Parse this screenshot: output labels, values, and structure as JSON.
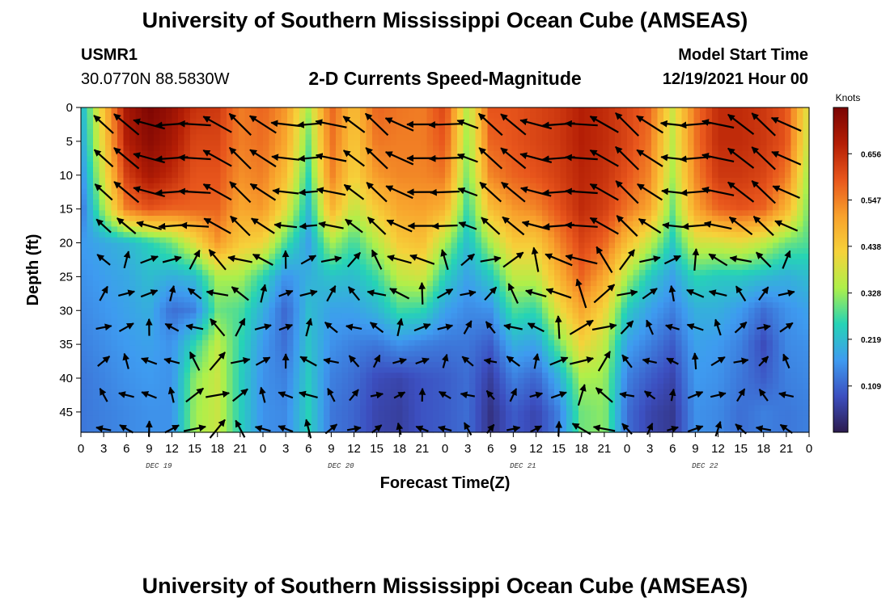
{
  "header": {
    "title": "University of Southern Mississippi Ocean Cube (AMSEAS)",
    "station": "USMR1",
    "coords": "30.0770N  88.5830W",
    "chart_title": "2-D Currents Speed-Magnitude",
    "model_start_label": "Model Start Time",
    "model_start_value": "12/19/2021 Hour 00"
  },
  "footer": {
    "title": "University of Southern Mississippi Ocean Cube (AMSEAS)"
  },
  "colors": [
    "#2c1b4e",
    "#3c4fc0",
    "#3e9bf0",
    "#25d3b6",
    "#aef04a",
    "#f6d23a",
    "#f8a12c",
    "#e8561c",
    "#b41e05",
    "#7a0403"
  ],
  "chart_data": {
    "type": "heatmap",
    "title": "2-D Currents Speed-Magnitude",
    "xlabel": "Forecast Time(Z)",
    "ylabel": "Depth (ft)",
    "x_ticks": [
      "0",
      "3",
      "6",
      "9",
      "12",
      "15",
      "18",
      "21",
      "0",
      "3",
      "6",
      "9",
      "12",
      "15",
      "18",
      "21",
      "0",
      "3",
      "6",
      "9",
      "12",
      "15",
      "18",
      "21",
      "0",
      "3",
      "6",
      "9",
      "12",
      "15",
      "18",
      "21",
      "0"
    ],
    "x_hours_range": [
      0,
      96
    ],
    "date_labels": [
      {
        "label": "DEC 19",
        "hour": 9
      },
      {
        "label": "DEC 20",
        "hour": 33
      },
      {
        "label": "DEC 21",
        "hour": 57
      },
      {
        "label": "DEC 22",
        "hour": 81
      }
    ],
    "y_ticks": [
      "0",
      "5",
      "10",
      "15",
      "20",
      "25",
      "30",
      "35",
      "40",
      "45"
    ],
    "y_range_ft": [
      0,
      48
    ],
    "colorbar": {
      "unit": "Knots",
      "ticks": [
        "0.656",
        "0.547",
        "0.438",
        "0.328",
        "0.219",
        "0.109"
      ],
      "range": [
        0,
        0.765
      ]
    },
    "vector_grid": {
      "time_step_h": 3,
      "depth_step_ft": 5
    },
    "depth_profiles_ft": [
      0,
      5,
      10,
      15,
      20,
      25,
      30,
      35,
      40,
      45,
      48
    ],
    "speed_profiles": [
      {
        "hour": 0,
        "speeds": [
          0.2,
          0.18,
          0.15,
          0.12,
          0.17,
          0.16,
          0.15,
          0.14,
          0.13,
          0.13,
          0.13
        ]
      },
      {
        "hour": 6,
        "speeds": [
          0.7,
          0.68,
          0.63,
          0.55,
          0.21,
          0.19,
          0.18,
          0.17,
          0.16,
          0.15,
          0.15
        ]
      },
      {
        "hour": 9,
        "speeds": [
          0.76,
          0.74,
          0.7,
          0.6,
          0.25,
          0.22,
          0.2,
          0.18,
          0.17,
          0.16,
          0.16
        ]
      },
      {
        "hour": 12,
        "speeds": [
          0.72,
          0.7,
          0.66,
          0.58,
          0.3,
          0.2,
          0.12,
          0.16,
          0.16,
          0.16,
          0.16
        ]
      },
      {
        "hour": 15,
        "speeds": [
          0.65,
          0.62,
          0.6,
          0.58,
          0.4,
          0.22,
          0.14,
          0.26,
          0.32,
          0.33,
          0.33
        ]
      },
      {
        "hour": 18,
        "speeds": [
          0.64,
          0.62,
          0.6,
          0.58,
          0.52,
          0.34,
          0.3,
          0.36,
          0.37,
          0.37,
          0.37
        ]
      },
      {
        "hour": 21,
        "speeds": [
          0.55,
          0.55,
          0.53,
          0.5,
          0.44,
          0.34,
          0.28,
          0.26,
          0.25,
          0.25,
          0.25
        ]
      },
      {
        "hour": 24,
        "speeds": [
          0.58,
          0.57,
          0.55,
          0.52,
          0.42,
          0.26,
          0.2,
          0.17,
          0.16,
          0.16,
          0.16
        ]
      },
      {
        "hour": 27,
        "speeds": [
          0.52,
          0.5,
          0.46,
          0.4,
          0.28,
          0.16,
          0.11,
          0.12,
          0.14,
          0.15,
          0.15
        ]
      },
      {
        "hour": 30,
        "speeds": [
          0.34,
          0.3,
          0.26,
          0.22,
          0.18,
          0.2,
          0.22,
          0.23,
          0.24,
          0.25,
          0.25
        ]
      },
      {
        "hour": 33,
        "speeds": [
          0.58,
          0.57,
          0.55,
          0.48,
          0.34,
          0.23,
          0.18,
          0.16,
          0.14,
          0.13,
          0.13
        ]
      },
      {
        "hour": 36,
        "speeds": [
          0.46,
          0.44,
          0.42,
          0.36,
          0.27,
          0.22,
          0.18,
          0.14,
          0.12,
          0.11,
          0.11
        ]
      },
      {
        "hour": 39,
        "speeds": [
          0.58,
          0.56,
          0.52,
          0.44,
          0.35,
          0.27,
          0.21,
          0.13,
          0.08,
          0.07,
          0.07
        ]
      },
      {
        "hour": 42,
        "speeds": [
          0.56,
          0.55,
          0.54,
          0.5,
          0.44,
          0.36,
          0.27,
          0.16,
          0.07,
          0.06,
          0.06
        ]
      },
      {
        "hour": 45,
        "speeds": [
          0.55,
          0.55,
          0.54,
          0.51,
          0.46,
          0.38,
          0.26,
          0.14,
          0.09,
          0.09,
          0.09
        ]
      },
      {
        "hour": 48,
        "speeds": [
          0.62,
          0.6,
          0.56,
          0.48,
          0.34,
          0.25,
          0.18,
          0.13,
          0.1,
          0.1,
          0.1
        ]
      },
      {
        "hour": 51,
        "speeds": [
          0.34,
          0.32,
          0.3,
          0.26,
          0.22,
          0.18,
          0.15,
          0.13,
          0.12,
          0.12,
          0.12
        ]
      },
      {
        "hour": 54,
        "speeds": [
          0.6,
          0.58,
          0.54,
          0.46,
          0.34,
          0.24,
          0.16,
          0.1,
          0.06,
          0.04,
          0.04
        ]
      },
      {
        "hour": 57,
        "speeds": [
          0.6,
          0.6,
          0.58,
          0.52,
          0.44,
          0.36,
          0.28,
          0.2,
          0.14,
          0.1,
          0.1
        ]
      },
      {
        "hour": 60,
        "speeds": [
          0.62,
          0.62,
          0.6,
          0.54,
          0.44,
          0.36,
          0.26,
          0.18,
          0.11,
          0.07,
          0.07
        ]
      },
      {
        "hour": 63,
        "speeds": [
          0.64,
          0.64,
          0.63,
          0.6,
          0.54,
          0.48,
          0.4,
          0.3,
          0.2,
          0.14,
          0.14
        ]
      },
      {
        "hour": 66,
        "speeds": [
          0.68,
          0.68,
          0.67,
          0.66,
          0.62,
          0.58,
          0.5,
          0.42,
          0.34,
          0.3,
          0.3
        ]
      },
      {
        "hour": 69,
        "speeds": [
          0.66,
          0.66,
          0.65,
          0.63,
          0.58,
          0.5,
          0.42,
          0.36,
          0.33,
          0.32,
          0.32
        ]
      },
      {
        "hour": 72,
        "speeds": [
          0.62,
          0.62,
          0.6,
          0.56,
          0.46,
          0.34,
          0.24,
          0.18,
          0.14,
          0.12,
          0.12
        ]
      },
      {
        "hour": 75,
        "speeds": [
          0.58,
          0.56,
          0.54,
          0.5,
          0.36,
          0.24,
          0.18,
          0.14,
          0.1,
          0.07,
          0.07
        ]
      },
      {
        "hour": 78,
        "speeds": [
          0.38,
          0.36,
          0.34,
          0.3,
          0.24,
          0.18,
          0.14,
          0.1,
          0.07,
          0.05,
          0.05
        ]
      },
      {
        "hour": 81,
        "speeds": [
          0.56,
          0.56,
          0.54,
          0.5,
          0.38,
          0.26,
          0.2,
          0.18,
          0.17,
          0.16,
          0.16
        ]
      },
      {
        "hour": 84,
        "speeds": [
          0.66,
          0.66,
          0.64,
          0.58,
          0.38,
          0.24,
          0.2,
          0.17,
          0.16,
          0.15,
          0.15
        ]
      },
      {
        "hour": 87,
        "speeds": [
          0.66,
          0.66,
          0.64,
          0.6,
          0.4,
          0.24,
          0.17,
          0.14,
          0.13,
          0.12,
          0.12
        ]
      },
      {
        "hour": 90,
        "speeds": [
          0.64,
          0.64,
          0.62,
          0.58,
          0.36,
          0.22,
          0.12,
          0.08,
          0.1,
          0.14,
          0.14
        ]
      },
      {
        "hour": 93,
        "speeds": [
          0.6,
          0.6,
          0.56,
          0.48,
          0.3,
          0.2,
          0.16,
          0.15,
          0.14,
          0.13,
          0.13
        ]
      },
      {
        "hour": 96,
        "speeds": [
          0.38,
          0.36,
          0.32,
          0.3,
          0.28,
          0.22,
          0.18,
          0.16,
          0.15,
          0.14,
          0.14
        ]
      }
    ]
  }
}
